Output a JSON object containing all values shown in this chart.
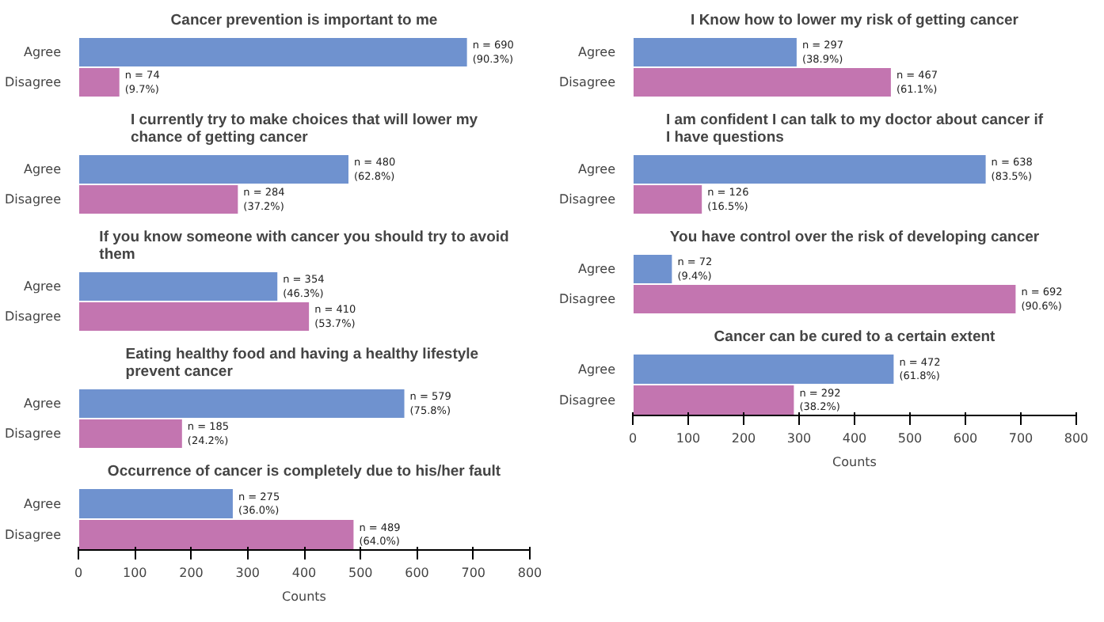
{
  "chart_data": [
    {
      "type": "bar",
      "orientation": "horizontal",
      "title": "Cancer prevention is important to me",
      "categories": [
        "Agree",
        "Disagree"
      ],
      "values": [
        690,
        74
      ],
      "colors": [
        "#6f92cf",
        "#c375b0"
      ],
      "value_labels": [
        "n = 690\n(90.3%)",
        "n = 74\n(9.7%)"
      ],
      "xlim": [
        0,
        800
      ],
      "xticks": [
        0,
        100,
        200,
        300,
        400,
        500,
        600,
        700,
        800
      ],
      "tick_labels": "y"
    },
    {
      "type": "bar",
      "orientation": "horizontal",
      "title": "I Know how to lower my risk of getting cancer",
      "categories": [
        "Agree",
        "Disagree"
      ],
      "values": [
        297,
        467
      ],
      "colors": [
        "#6f92cf",
        "#c375b0"
      ],
      "value_labels": [
        "n = 297\n(38.9%)",
        "n = 467\n(61.1%)"
      ],
      "xlim": [
        0,
        800
      ],
      "xticks": [
        0,
        100,
        200,
        300,
        400,
        500,
        600,
        700,
        800
      ],
      "tick_labels": "y"
    },
    {
      "type": "bar",
      "orientation": "horizontal",
      "title": "I currently try to make choices that will lower my chance of getting cancer",
      "categories": [
        "Agree",
        "Disagree"
      ],
      "values": [
        480,
        284
      ],
      "colors": [
        "#6f92cf",
        "#c375b0"
      ],
      "value_labels": [
        "n = 480\n(62.8%)",
        "n = 284\n(37.2%)"
      ],
      "xlim": [
        0,
        800
      ],
      "xticks": [
        0,
        100,
        200,
        300,
        400,
        500,
        600,
        700,
        800
      ],
      "tick_labels": "y"
    },
    {
      "type": "bar",
      "orientation": "horizontal",
      "title": "I am confident I can talk to my doctor about cancer if I have questions",
      "categories": [
        "Agree",
        "Disagree"
      ],
      "values": [
        638,
        126
      ],
      "colors": [
        "#6f92cf",
        "#c375b0"
      ],
      "value_labels": [
        "n = 638\n(83.5%)",
        "n = 126\n(16.5%)"
      ],
      "xlim": [
        0,
        800
      ],
      "xticks": [
        0,
        100,
        200,
        300,
        400,
        500,
        600,
        700,
        800
      ],
      "tick_labels": "y"
    },
    {
      "type": "bar",
      "orientation": "horizontal",
      "title": "If you know someone with cancer you should try to avoid them",
      "categories": [
        "Agree",
        "Disagree"
      ],
      "values": [
        354,
        410
      ],
      "colors": [
        "#6f92cf",
        "#c375b0"
      ],
      "value_labels": [
        "n = 354\n(46.3%)",
        "n = 410\n(53.7%)"
      ],
      "xlim": [
        0,
        800
      ],
      "xticks": [
        0,
        100,
        200,
        300,
        400,
        500,
        600,
        700,
        800
      ],
      "tick_labels": "y"
    },
    {
      "type": "bar",
      "orientation": "horizontal",
      "title": "You have control over the risk of developing cancer",
      "categories": [
        "Agree",
        "Disagree"
      ],
      "values": [
        72,
        692
      ],
      "colors": [
        "#6f92cf",
        "#c375b0"
      ],
      "value_labels": [
        "n = 72\n(9.4%)",
        "n = 692\n(90.6%)"
      ],
      "xlim": [
        0,
        800
      ],
      "xticks": [
        0,
        100,
        200,
        300,
        400,
        500,
        600,
        700,
        800
      ],
      "tick_labels": "y"
    },
    {
      "type": "bar",
      "orientation": "horizontal",
      "title": "Eating healthy food and having a healthy  lifestyle prevent cancer",
      "categories": [
        "Agree",
        "Disagree"
      ],
      "values": [
        579,
        185
      ],
      "colors": [
        "#6f92cf",
        "#c375b0"
      ],
      "value_labels": [
        "n = 579\n(75.8%)",
        "n = 185\n(24.2%)"
      ],
      "xlim": [
        0,
        800
      ],
      "xticks": [
        0,
        100,
        200,
        300,
        400,
        500,
        600,
        700,
        800
      ],
      "tick_labels": "y"
    },
    {
      "type": "bar",
      "orientation": "horizontal",
      "title": "Cancer can be cured to a certain extent",
      "categories": [
        "Agree",
        "Disagree"
      ],
      "values": [
        472,
        292
      ],
      "colors": [
        "#6f92cf",
        "#c375b0"
      ],
      "value_labels": [
        "n = 472\n(61.8%)",
        "n = 292\n(38.2%)"
      ],
      "xlim": [
        0,
        800
      ],
      "xticks": [
        0,
        100,
        200,
        300,
        400,
        500,
        600,
        700,
        800
      ],
      "xlabel": "Counts"
    },
    {
      "type": "bar",
      "orientation": "horizontal",
      "title": "Occurrence of cancer is completely due to his/her fault",
      "categories": [
        "Agree",
        "Disagree"
      ],
      "values": [
        275,
        489
      ],
      "colors": [
        "#6f92cf",
        "#c375b0"
      ],
      "value_labels": [
        "n = 275\n(36.0%)",
        "n = 489\n(64.0%)"
      ],
      "xlim": [
        0,
        800
      ],
      "xticks": [
        0,
        100,
        200,
        300,
        400,
        500,
        600,
        700,
        800
      ],
      "xlabel": "Counts"
    }
  ]
}
